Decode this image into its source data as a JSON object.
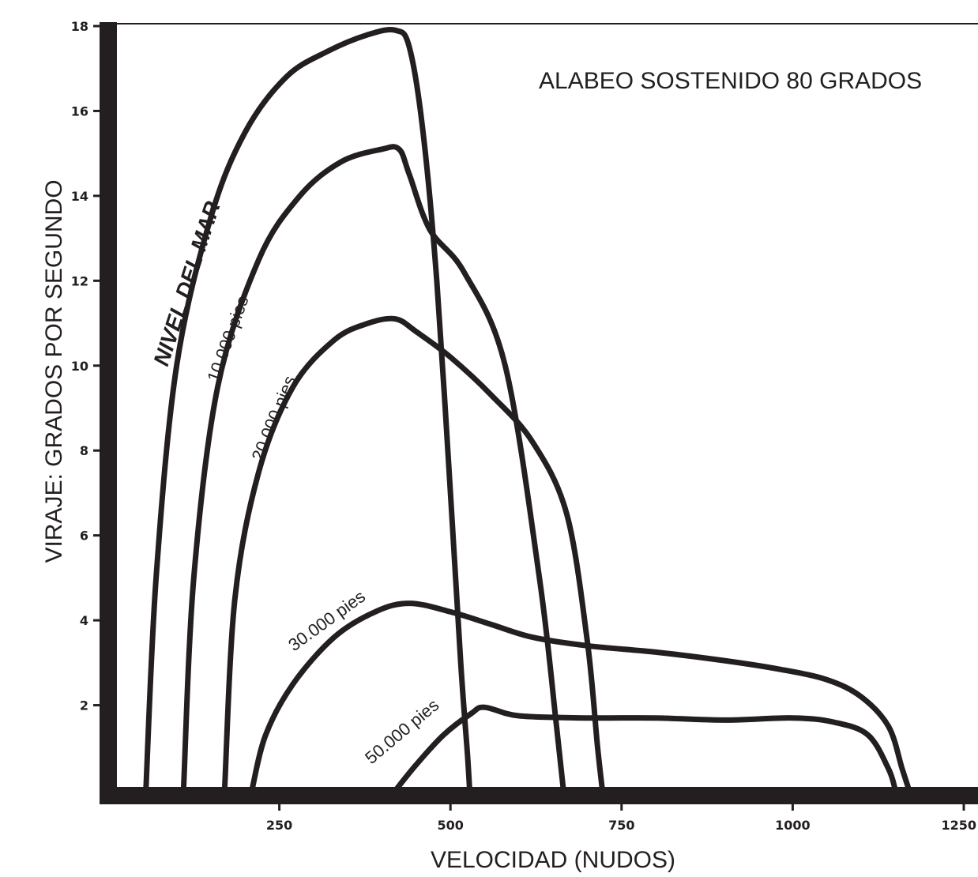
{
  "chart_data": {
    "type": "line",
    "title": "ALABEO SOSTENIDO 80 GRADOS",
    "xlabel": "VELOCIDAD (NUDOS)",
    "ylabel": "VIRAJE: GRADOS POR SEGUNDO",
    "xlim": [
      0,
      1250
    ],
    "ylim": [
      0,
      18
    ],
    "xticks": [
      "250",
      "500",
      "750",
      "1000",
      "1250"
    ],
    "yticks": [
      "2",
      "4",
      "6",
      "8",
      "10",
      "12",
      "14",
      "16",
      "18"
    ],
    "ytick_values": [
      2,
      4,
      6,
      8,
      10,
      12,
      14,
      16,
      18
    ],
    "xtick_values": [
      250,
      500,
      750,
      1000,
      1250
    ],
    "grid": false,
    "colors": {
      "line": "#231f20",
      "background": "#ffffff"
    },
    "series": [
      {
        "name": "NIVEL DEL MAR",
        "x": [
          55,
          70,
          100,
          150,
          200,
          260,
          320,
          380,
          420,
          440,
          460,
          480,
          500,
          515,
          525,
          528
        ],
        "y": [
          0,
          5,
          10,
          13.5,
          15.5,
          16.8,
          17.4,
          17.8,
          17.9,
          17.5,
          15.5,
          12,
          7,
          3,
          0.8,
          0
        ]
      },
      {
        "name": "10.000 pies",
        "x": [
          110,
          125,
          160,
          220,
          280,
          340,
          400,
          425,
          440,
          470,
          520,
          580,
          630,
          655,
          665
        ],
        "y": [
          0,
          5,
          9.5,
          12.5,
          14,
          14.8,
          15.1,
          15.1,
          14.5,
          13.2,
          12.2,
          10,
          5,
          1.5,
          0
        ]
      },
      {
        "name": "20.000 pies",
        "x": [
          170,
          185,
          220,
          270,
          330,
          380,
          420,
          450,
          500,
          560,
          620,
          670,
          700,
          715,
          722
        ],
        "y": [
          0,
          4.5,
          7.5,
          9.5,
          10.6,
          11,
          11.1,
          10.8,
          10.2,
          9.3,
          8.2,
          6.5,
          3.5,
          1,
          0
        ]
      },
      {
        "name": "30.000 pies",
        "x": [
          210,
          230,
          270,
          330,
          390,
          440,
          500,
          560,
          620,
          700,
          800,
          900,
          980,
          1050,
          1100,
          1140,
          1160,
          1170
        ],
        "y": [
          0,
          1.3,
          2.5,
          3.6,
          4.2,
          4.4,
          4.2,
          3.9,
          3.6,
          3.4,
          3.25,
          3.05,
          2.85,
          2.6,
          2.2,
          1.5,
          0.5,
          0
        ]
      },
      {
        "name": "50.000 pies",
        "x": [
          420,
          450,
          490,
          530,
          550,
          600,
          700,
          800,
          900,
          1000,
          1060,
          1110,
          1140,
          1150
        ],
        "y": [
          0,
          0.6,
          1.3,
          1.8,
          1.95,
          1.75,
          1.7,
          1.7,
          1.65,
          1.7,
          1.6,
          1.3,
          0.5,
          0
        ]
      }
    ]
  }
}
